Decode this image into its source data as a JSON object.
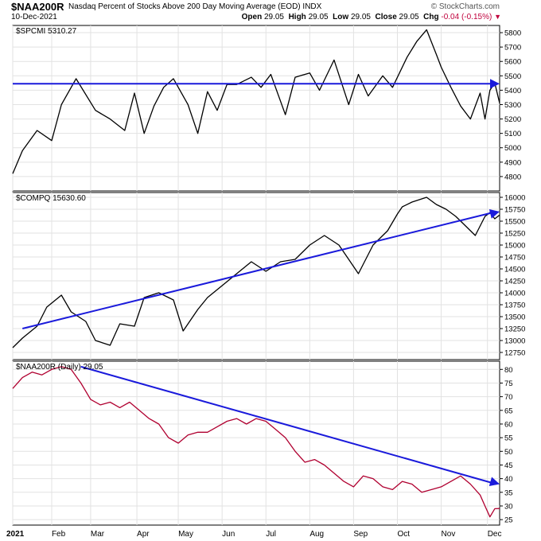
{
  "header": {
    "symbol": "$NAA200R",
    "description": "Nasdaq Percent of Stocks Above 200 Day Moving Average (EOD)  INDX",
    "date": "10-Dec-2021",
    "brand": "© StockCharts.com",
    "open_label": "Open",
    "open": "29.05",
    "high_label": "High",
    "high": "29.05",
    "low_label": "Low",
    "low": "29.05",
    "close_label": "Close",
    "close": "29.05",
    "chg_label": "Chg",
    "chg": "-0.04 (-0.15%)",
    "chg_icon": "down-triangle-icon",
    "colors": {
      "price": "#000000",
      "breadth": "#b00030",
      "trend": "#1a1adb",
      "down": "#c0003c"
    }
  },
  "chart_data": [
    {
      "type": "line",
      "panel": "top",
      "title": "$SPCMI 5310.27",
      "ylim": [
        4700,
        5850
      ],
      "yticks": [
        "5800",
        "5700",
        "5600",
        "5500",
        "5400",
        "5300",
        "5200",
        "5100",
        "5000",
        "4900",
        "4800"
      ],
      "x": [
        0,
        0.02,
        0.05,
        0.08,
        0.1,
        0.13,
        0.17,
        0.2,
        0.23,
        0.25,
        0.27,
        0.29,
        0.31,
        0.33,
        0.36,
        0.38,
        0.4,
        0.42,
        0.44,
        0.46,
        0.49,
        0.51,
        0.53,
        0.56,
        0.58,
        0.61,
        0.63,
        0.66,
        0.69,
        0.71,
        0.73,
        0.76,
        0.78,
        0.81,
        0.83,
        0.85,
        0.87,
        0.88,
        0.9,
        0.92,
        0.94,
        0.96,
        0.97,
        0.98,
        0.99,
        1.0
      ],
      "values": [
        4820,
        4980,
        5120,
        5050,
        5300,
        5480,
        5260,
        5200,
        5120,
        5380,
        5100,
        5290,
        5420,
        5480,
        5300,
        5100,
        5390,
        5260,
        5440,
        5440,
        5490,
        5420,
        5510,
        5230,
        5490,
        5520,
        5400,
        5610,
        5300,
        5510,
        5360,
        5500,
        5420,
        5630,
        5740,
        5820,
        5650,
        5560,
        5420,
        5290,
        5200,
        5380,
        5200,
        5400,
        5450,
        5310
      ],
      "trendline": {
        "x": [
          0,
          1.0
        ],
        "values": [
          5445,
          5445
        ]
      }
    },
    {
      "type": "line",
      "panel": "middle",
      "title": "$COMPQ 15630.60",
      "ylim": [
        12600,
        16100
      ],
      "yticks": [
        "16000",
        "15750",
        "15500",
        "15250",
        "15000",
        "14750",
        "14500",
        "14250",
        "14000",
        "13750",
        "13500",
        "13250",
        "13000",
        "12750"
      ],
      "x": [
        0,
        0.02,
        0.05,
        0.07,
        0.1,
        0.12,
        0.15,
        0.17,
        0.2,
        0.22,
        0.25,
        0.27,
        0.3,
        0.33,
        0.35,
        0.38,
        0.4,
        0.43,
        0.46,
        0.49,
        0.52,
        0.55,
        0.58,
        0.61,
        0.64,
        0.67,
        0.69,
        0.71,
        0.74,
        0.77,
        0.79,
        0.8,
        0.82,
        0.85,
        0.87,
        0.89,
        0.91,
        0.93,
        0.95,
        0.96,
        0.97,
        0.98,
        0.99,
        1.0
      ],
      "values": [
        12850,
        13050,
        13300,
        13700,
        13950,
        13600,
        13400,
        13000,
        12900,
        13350,
        13300,
        13900,
        14000,
        13850,
        13200,
        13650,
        13900,
        14150,
        14400,
        14650,
        14450,
        14650,
        14700,
        15000,
        15200,
        15000,
        14700,
        14400,
        15000,
        15300,
        15650,
        15800,
        15900,
        16000,
        15850,
        15750,
        15600,
        15400,
        15200,
        15400,
        15600,
        15680,
        15550,
        15630
      ],
      "trendline": {
        "x": [
          0.02,
          1.0
        ],
        "values": [
          13250,
          15700
        ]
      }
    },
    {
      "type": "line",
      "panel": "bottom",
      "title": "$NAA200R (Daily) 29.05",
      "ylim": [
        23,
        83
      ],
      "yticks": [
        "80",
        "75",
        "70",
        "65",
        "60",
        "55",
        "50",
        "45",
        "40",
        "35",
        "30",
        "25"
      ],
      "x": [
        0,
        0.02,
        0.04,
        0.06,
        0.08,
        0.1,
        0.12,
        0.14,
        0.16,
        0.18,
        0.2,
        0.22,
        0.24,
        0.26,
        0.28,
        0.3,
        0.32,
        0.34,
        0.36,
        0.38,
        0.4,
        0.42,
        0.44,
        0.46,
        0.48,
        0.5,
        0.52,
        0.54,
        0.56,
        0.58,
        0.6,
        0.62,
        0.64,
        0.66,
        0.68,
        0.7,
        0.72,
        0.74,
        0.76,
        0.78,
        0.8,
        0.82,
        0.84,
        0.86,
        0.88,
        0.9,
        0.92,
        0.94,
        0.96,
        0.97,
        0.98,
        0.99,
        1.0
      ],
      "values": [
        73,
        77,
        79,
        78,
        80,
        81,
        80,
        75,
        69,
        67,
        68,
        66,
        68,
        65,
        62,
        60,
        55,
        53,
        56,
        57,
        57,
        59,
        61,
        62,
        60,
        62,
        61,
        58,
        55,
        50,
        46,
        47,
        45,
        42,
        39,
        37,
        41,
        40,
        37,
        36,
        39,
        38,
        35,
        36,
        37,
        39,
        41,
        38,
        34,
        30,
        26,
        29,
        29.05
      ],
      "trendline": {
        "x": [
          0.14,
          1.0
        ],
        "values": [
          81,
          38
        ]
      }
    }
  ],
  "x_axis": {
    "labels": [
      "2021",
      "Feb",
      "Mar",
      "Apr",
      "May",
      "Jun",
      "Jul",
      "Aug",
      "Sep",
      "Oct",
      "Nov",
      "Dec"
    ],
    "positions": [
      0,
      0.08,
      0.16,
      0.255,
      0.34,
      0.43,
      0.52,
      0.61,
      0.7,
      0.79,
      0.88,
      0.975
    ]
  }
}
